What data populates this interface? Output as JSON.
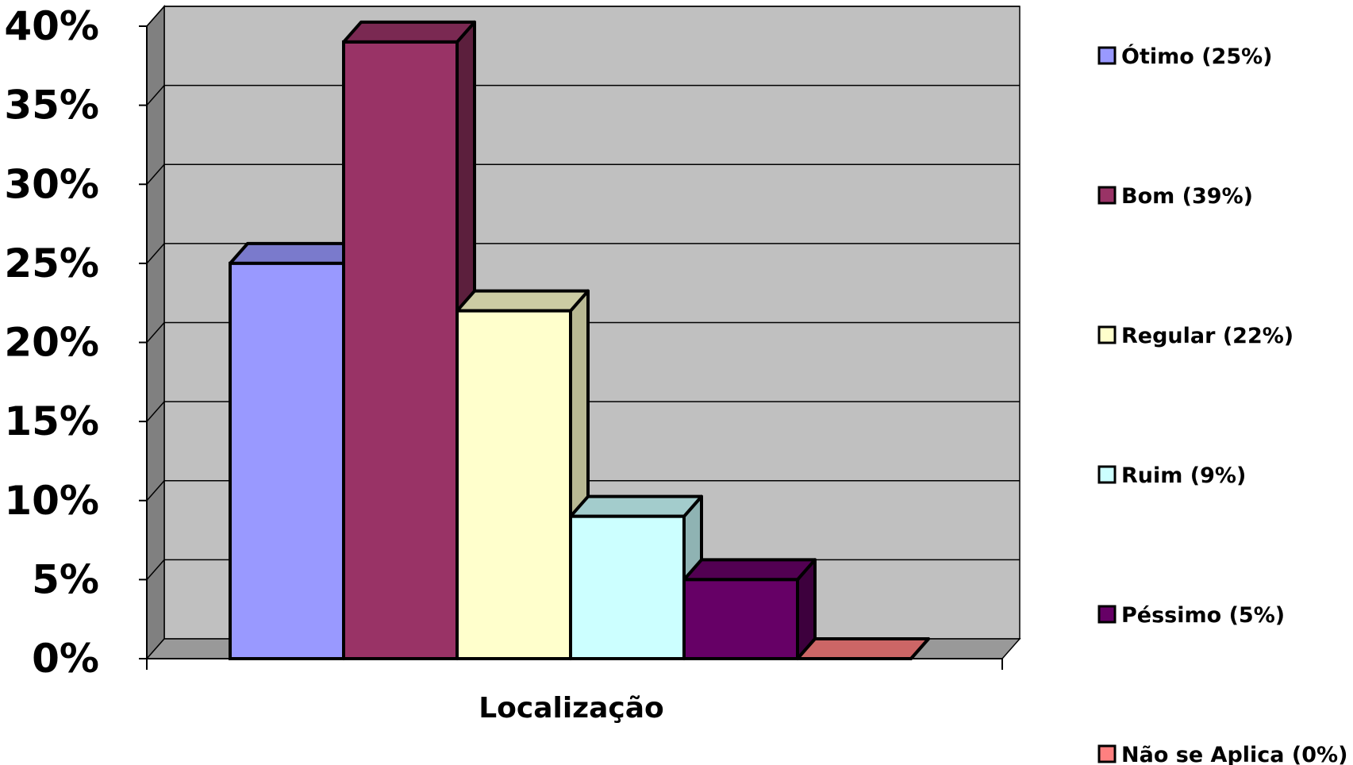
{
  "chart_data": {
    "type": "bar",
    "style": "3d-clustered-column",
    "category": "Localização",
    "ylim": [
      0,
      40
    ],
    "yticks": [
      "0%",
      "5%",
      "10%",
      "15%",
      "20%",
      "25%",
      "30%",
      "35%",
      "40%"
    ],
    "grid": true,
    "legend_position": "right",
    "series": [
      {
        "name": "Ótimo",
        "legend_label": "Ótimo (25%)",
        "value": 25,
        "color": "#9999FF",
        "top_color": "#7A7ACC",
        "side_color": "#5C5CA0"
      },
      {
        "name": "Bom",
        "legend_label": "Bom (39%)",
        "value": 39,
        "color": "#993366",
        "top_color": "#7A2952",
        "side_color": "#5C1F3D"
      },
      {
        "name": "Regular",
        "legend_label": "Regular (22%)",
        "value": 22,
        "color": "#FFFFCC",
        "top_color": "#CCCCA3",
        "side_color": "#B8B893"
      },
      {
        "name": "Ruim",
        "legend_label": "Ruim (9%)",
        "value": 9,
        "color": "#CCFFFF",
        "top_color": "#A3CCCC",
        "side_color": "#8FB3B3"
      },
      {
        "name": "Péssimo",
        "legend_label": "Péssimo (5%)",
        "value": 5,
        "color": "#660066",
        "top_color": "#520052",
        "side_color": "#3D003D"
      },
      {
        "name": "Não se Aplica",
        "legend_label": "Não se Aplica (0%)",
        "value": 0,
        "color": "#FF8080",
        "top_color": "#CC6666",
        "side_color": "#A35252"
      }
    ],
    "wall_color": "#C0C0C0",
    "floor_color": "#999999"
  }
}
